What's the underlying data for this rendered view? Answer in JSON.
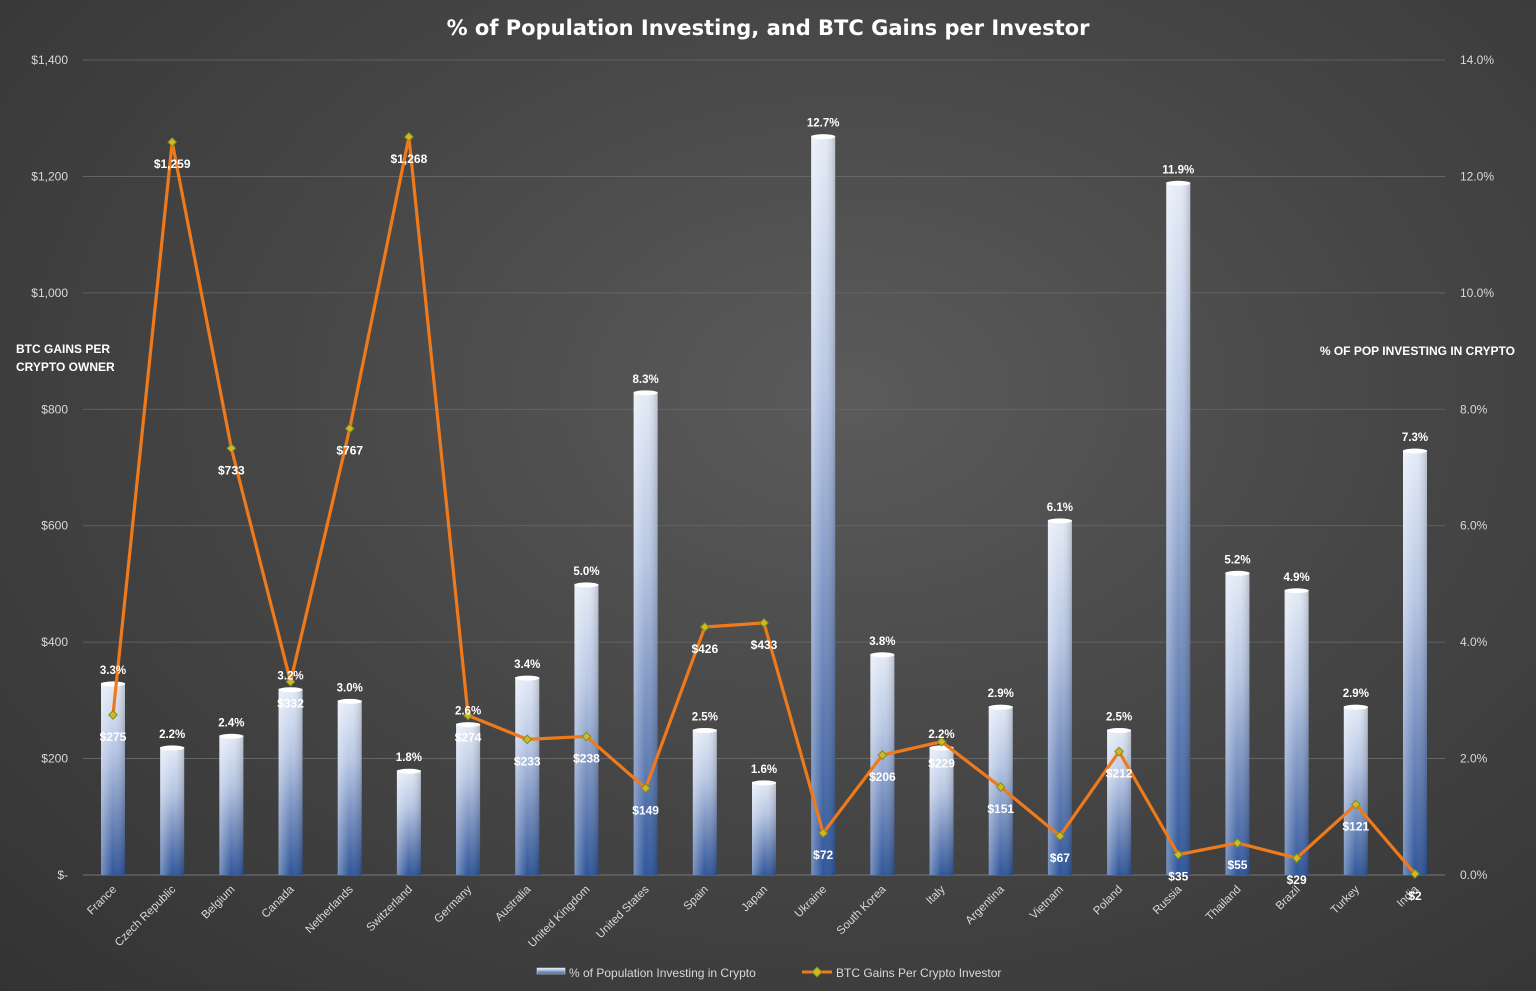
{
  "chart_data": {
    "type": "bar",
    "title": "% of Population Investing, and BTC Gains per Investor",
    "ylabel_left": [
      "BTC GAINS PER",
      "CRYPTO OWNER"
    ],
    "ylabel_right": "% OF POP INVESTING IN CRYPTO",
    "left_axis": {
      "min": 0,
      "max": 1400,
      "ticks": [
        "$-",
        "$200",
        "$400",
        "$600",
        "$800",
        "$1,000",
        "$1,200",
        "$1,400"
      ]
    },
    "right_axis": {
      "min": 0,
      "max": 14,
      "ticks": [
        "0.0%",
        "2.0%",
        "4.0%",
        "6.0%",
        "8.0%",
        "10.0%",
        "12.0%",
        "14.0%"
      ]
    },
    "grid": true,
    "legend_position": "bottom",
    "categories": [
      "France",
      "Czech Republic",
      "Belgium",
      "Canada",
      "Netherlands",
      "Switzerland",
      "Germany",
      "Australia",
      "United Kingdom",
      "United States",
      "Spain",
      "Japan",
      "Ukraine",
      "South Korea",
      "Italy",
      "Argentina",
      "Vietnam",
      "Poland",
      "Russia",
      "Thailand",
      "Brazil",
      "Turkey",
      "India"
    ],
    "series": [
      {
        "name": "% of Population Investing in Crypto",
        "type": "bar",
        "axis": "right",
        "color": "#b7c6e4",
        "values": [
          3.3,
          2.2,
          2.4,
          3.2,
          3.0,
          1.8,
          2.6,
          3.4,
          5.0,
          8.3,
          2.5,
          1.6,
          12.7,
          3.8,
          2.2,
          2.9,
          6.1,
          2.5,
          11.9,
          5.2,
          4.9,
          2.9,
          7.3
        ],
        "labels": [
          "3.3%",
          "2.2%",
          "2.4%",
          "3.2%",
          "3.0%",
          "1.8%",
          "2.6%",
          "3.4%",
          "5.0%",
          "8.3%",
          "2.5%",
          "1.6%",
          "12.7%",
          "3.8%",
          "2.2%",
          "2.9%",
          "6.1%",
          "2.5%",
          "11.9%",
          "5.2%",
          "4.9%",
          "2.9%",
          "7.3%"
        ]
      },
      {
        "name": "BTC Gains Per Crypto Investor",
        "type": "line",
        "axis": "left",
        "color": "#ee7a1c",
        "values": [
          275,
          1259,
          733,
          332,
          767,
          1268,
          274,
          233,
          238,
          149,
          426,
          433,
          72,
          206,
          229,
          151,
          67,
          212,
          35,
          55,
          29,
          121,
          2
        ],
        "labels": [
          "$275",
          "$1,259",
          "$733",
          "$332",
          "$767",
          "$1,268",
          "$274",
          "$233",
          "$238",
          "$149",
          "$426",
          "$433",
          "$72",
          "$206",
          "$229",
          "$151",
          "$67",
          "$212",
          "$35",
          "$55",
          "$29",
          "$121",
          "$2"
        ]
      }
    ]
  }
}
